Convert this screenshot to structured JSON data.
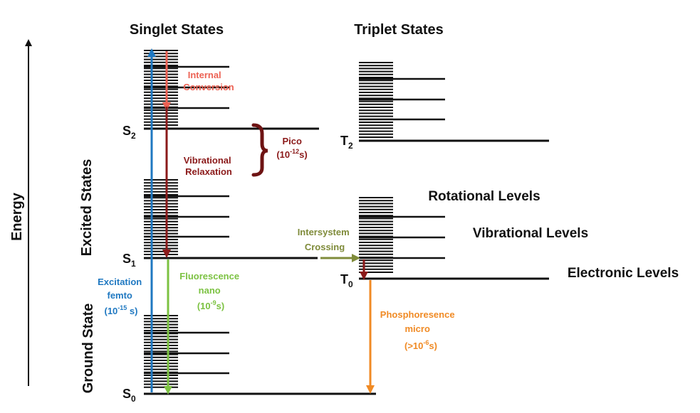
{
  "headings": {
    "singlet": "Singlet States",
    "triplet": "Triplet States"
  },
  "axis": {
    "energy": "Energy",
    "excited_states": "Excited States",
    "ground_state": "Ground State"
  },
  "levels": {
    "s0_main": "S",
    "s0_sub": "0",
    "s1_main": "S",
    "s1_sub": "1",
    "s2_main": "S",
    "s2_sub": "2",
    "t0_main": "T",
    "t0_sub": "0",
    "t2_main": "T",
    "t2_sub": "2"
  },
  "legend": {
    "rotational": "Rotational Levels",
    "vibrational": "Vibrational Levels",
    "electronic": "Electronic Levels"
  },
  "processes": {
    "internal_conversion": [
      "Internal",
      "Conversion"
    ],
    "vibrational_relaxation": [
      "Vibrational",
      "Relaxation"
    ],
    "pico": {
      "name": "Pico",
      "time_open": "(10",
      "time_exp": "-12",
      "time_close": "s)"
    },
    "excitation": {
      "line1": "Excitation",
      "line2": "femto",
      "time_open": "(10",
      "time_exp": "-15",
      "time_close": " s)"
    },
    "fluorescence": {
      "line1": "Fluorescence",
      "line2": "nano",
      "time_open": "(10",
      "time_exp": "-9",
      "time_close": "s)"
    },
    "intersystem": [
      "Intersystem",
      "Crossing"
    ],
    "phosphorescence": {
      "line1": "Phosphoresence",
      "line2": "micro",
      "time_open": "(>10",
      "time_exp": "-6",
      "time_close": "s)"
    }
  },
  "colors": {
    "excitation": "#1f78c1",
    "internal_conversion": "#ec6153",
    "vibrational_relaxation": "#8b1a1a",
    "fluorescence": "#7cc242",
    "intersystem": "#7f8b3a",
    "phosphorescence": "#f08a24",
    "level_lines": "#111111"
  }
}
